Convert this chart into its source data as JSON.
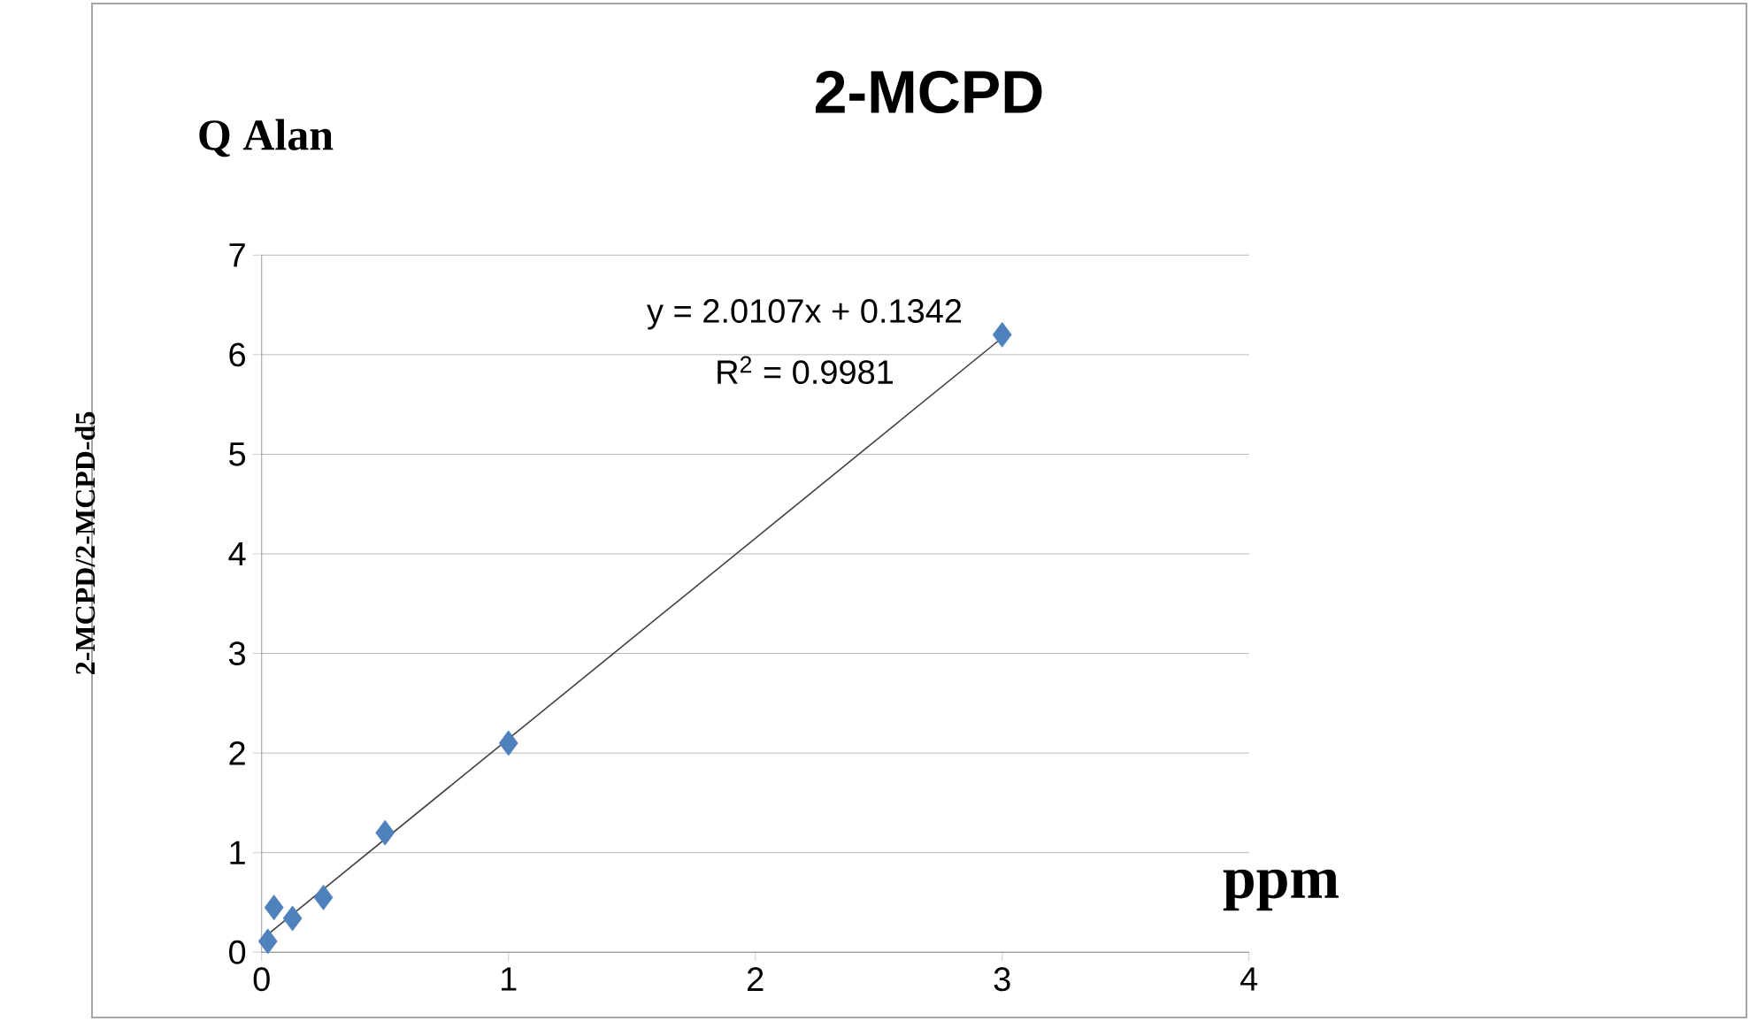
{
  "chart_data": {
    "type": "scatter",
    "title": "2-MCPD",
    "subtitle": "Q Alan",
    "xlabel": "ppm",
    "ylabel": "2-MCPD/2-MCPD-d5",
    "annotations": [
      "y = 2.0107x + 0.1342",
      "R$^{2}$ = 0.9981"
    ],
    "xlim": [
      0,
      4
    ],
    "ylim": [
      0,
      7
    ],
    "xticks": [
      0,
      1,
      2,
      3,
      4
    ],
    "yticks": [
      0,
      1,
      2,
      3,
      4,
      5,
      6,
      7
    ],
    "grid": "y",
    "series": [
      {
        "type": "scatter",
        "color": "#4f81bd",
        "marker": "diamond",
        "x": [
          0.025,
          0.05,
          0.125,
          0.25,
          0.5,
          1,
          3
        ],
        "values": [
          0.11,
          0.45,
          0.34,
          0.55,
          1.2,
          2.1,
          6.2
        ]
      },
      {
        "type": "line",
        "color": "#404040",
        "marker": "none",
        "line_style": "solid",
        "x": [
          0.025,
          3
        ],
        "values": [
          0.18,
          6.17
        ]
      }
    ]
  }
}
